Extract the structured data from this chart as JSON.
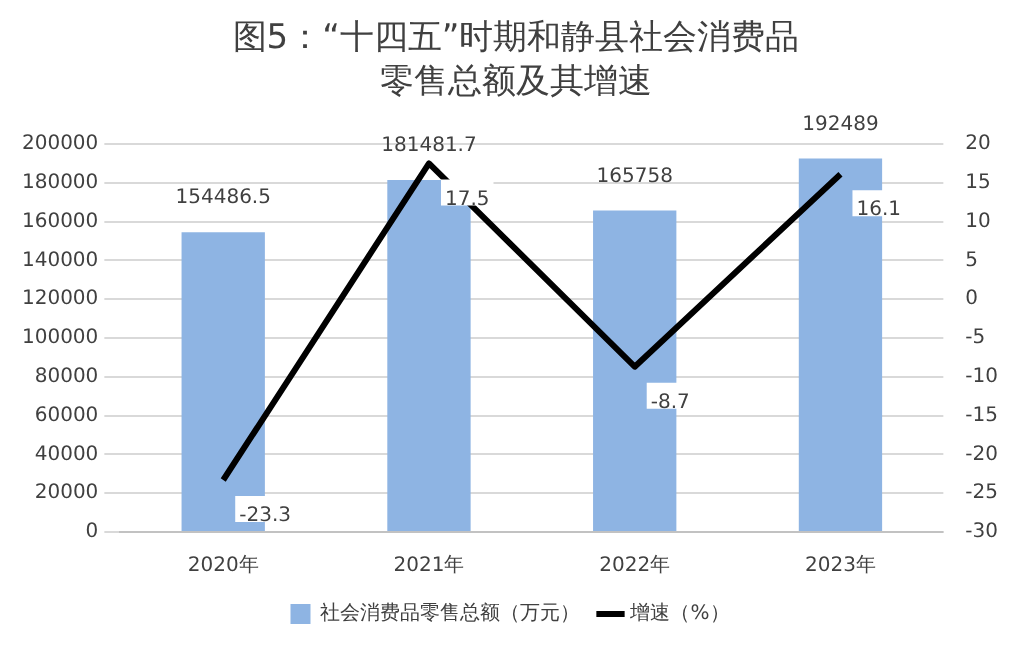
{
  "chart_data": {
    "type": "bar",
    "title": "图5：“十四五”时期和静县社会消费品零售总额及其增速",
    "categories": [
      "2020年",
      "2021年",
      "2022年",
      "2023年"
    ],
    "series": [
      {
        "name": "社会消费品零售总额（万元）",
        "color": "#8eb4e3",
        "values": [
          154486.5,
          181481.7,
          165758,
          192489
        ]
      },
      {
        "name": "增速（%）",
        "type": "line",
        "axis": "y2",
        "color": "#000000",
        "values": [
          -23.3,
          17.5,
          -8.7,
          16.1
        ]
      }
    ],
    "ylim": [
      0,
      200000
    ],
    "yticks": [
      0,
      20000,
      40000,
      60000,
      80000,
      100000,
      120000,
      140000,
      160000,
      180000,
      200000
    ],
    "y2lim": [
      -30,
      20
    ],
    "y2ticks": [
      -30,
      -25,
      -20,
      -15,
      -10,
      -5,
      0,
      5,
      10,
      15,
      20
    ],
    "grid": "y",
    "legend": "bottom",
    "marker": "none",
    "line_style": "solid",
    "data_labels": true
  }
}
